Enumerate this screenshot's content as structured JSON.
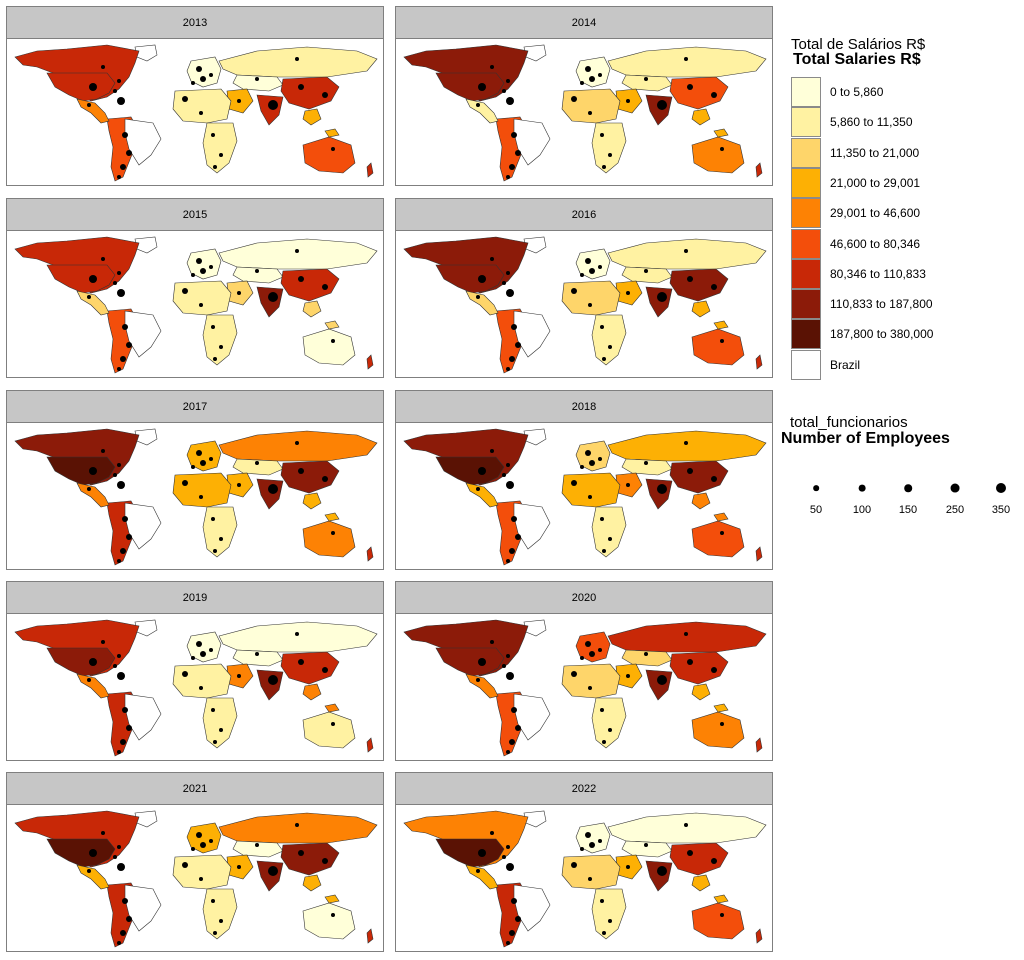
{
  "panels": [
    {
      "year": "2013",
      "scheme": [
        6,
        6,
        5,
        4,
        1,
        0,
        6,
        3,
        1,
        1,
        6,
        5
      ]
    },
    {
      "year": "2014",
      "scheme": [
        7,
        7,
        5,
        1,
        1,
        1,
        5,
        3,
        2,
        1,
        7,
        4
      ]
    },
    {
      "year": "2015",
      "scheme": [
        6,
        6,
        5,
        2,
        0,
        0,
        6,
        2,
        1,
        1,
        7,
        0
      ]
    },
    {
      "year": "2016",
      "scheme": [
        7,
        7,
        5,
        2,
        1,
        1,
        7,
        3,
        2,
        1,
        7,
        5
      ]
    },
    {
      "year": "2017",
      "scheme": [
        7,
        8,
        6,
        4,
        4,
        1,
        7,
        3,
        3,
        1,
        7,
        4
      ]
    },
    {
      "year": "2018",
      "scheme": [
        7,
        8,
        5,
        3,
        3,
        1,
        7,
        4,
        3,
        1,
        7,
        5
      ]
    },
    {
      "year": "2019",
      "scheme": [
        6,
        7,
        6,
        4,
        0,
        0,
        6,
        4,
        1,
        1,
        7,
        1
      ]
    },
    {
      "year": "2020",
      "scheme": [
        7,
        7,
        5,
        4,
        6,
        2,
        6,
        3,
        2,
        1,
        7,
        4
      ]
    },
    {
      "year": "2021",
      "scheme": [
        6,
        8,
        6,
        3,
        4,
        0,
        7,
        3,
        1,
        1,
        7,
        0
      ]
    },
    {
      "year": "2022",
      "scheme": [
        4,
        8,
        6,
        3,
        0,
        0,
        6,
        3,
        2,
        1,
        7,
        5
      ]
    }
  ],
  "legend_fill": {
    "title_pt": "Total de Salários R$",
    "title_en": "Total Salaries R$",
    "items": [
      {
        "label": "0 to 5,860",
        "color": "#ffffd9"
      },
      {
        "label": "5,860 to 11,350",
        "color": "#fff2a2"
      },
      {
        "label": "11,350 to 21,000",
        "color": "#fed56a"
      },
      {
        "label": "21,000 to 29,001",
        "color": "#fdb004"
      },
      {
        "label": "29,001 to 46,600",
        "color": "#fd8204"
      },
      {
        "label": "46,600 to 80,346",
        "color": "#f34e0b"
      },
      {
        "label": "80,346 to 110,833",
        "color": "#c82807"
      },
      {
        "label": "110,833 to 187,800",
        "color": "#8c1b09"
      },
      {
        "label": "187,800 to 380,000",
        "color": "#5a1204"
      },
      {
        "label": "Brazil",
        "color": "#ffffff"
      }
    ]
  },
  "legend_size": {
    "title_var": "total_funcionarios",
    "title_en": "Number of Employees",
    "items": [
      {
        "label": "50",
        "value": 50
      },
      {
        "label": "100",
        "value": 100
      },
      {
        "label": "150",
        "value": 150
      },
      {
        "label": "250",
        "value": 250
      },
      {
        "label": "350",
        "value": 350
      }
    ]
  }
}
